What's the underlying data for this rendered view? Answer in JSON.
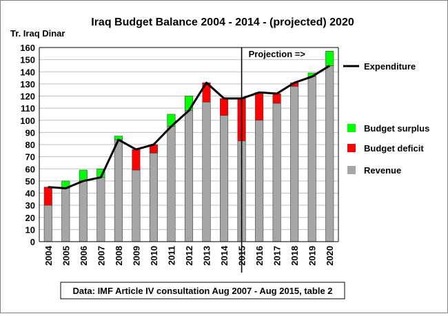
{
  "chart_data": {
    "type": "bar",
    "title": "Iraq Budget Balance 2004 - 2014 - (projected) 2020",
    "ylabel": "Tr. Iraq Dinar",
    "xlabel": "",
    "ylim": [
      0,
      160
    ],
    "yticks": [
      0,
      10,
      20,
      30,
      40,
      50,
      60,
      70,
      80,
      90,
      100,
      110,
      120,
      130,
      140,
      150,
      160
    ],
    "grid": true,
    "stacked": true,
    "categories": [
      "2004",
      "2005",
      "2006",
      "2007",
      "2008",
      "2009",
      "2010",
      "2011",
      "2012",
      "2013",
      "2014",
      "2015",
      "2016",
      "2017",
      "2018",
      "2019",
      "2020"
    ],
    "series": [
      {
        "name": "Revenue",
        "kind": "bar",
        "color": "#a6a6a6",
        "values": [
          30,
          44,
          50,
          53,
          84,
          59,
          73,
          95,
          108,
          115,
          104,
          83,
          100,
          114,
          128,
          136,
          145
        ]
      },
      {
        "name": "Budget deficit",
        "kind": "bar",
        "color": "#ff0000",
        "values": [
          15,
          0,
          0,
          0,
          0,
          17,
          7,
          0,
          0,
          16,
          14,
          35,
          23,
          8,
          3,
          0,
          0
        ]
      },
      {
        "name": "Budget surplus",
        "kind": "bar",
        "color": "#00ff00",
        "values": [
          0,
          6,
          9,
          7,
          3,
          0,
          0,
          10,
          12,
          0,
          0,
          0,
          0,
          0,
          0,
          3,
          12
        ]
      },
      {
        "name": "Expenditure",
        "kind": "line",
        "color": "#000000",
        "values": [
          45,
          44,
          50,
          53,
          84,
          76,
          80,
          95,
          108,
          131,
          118,
          118,
          123,
          122,
          131,
          136,
          145
        ]
      }
    ],
    "legend": {
      "placement": "right",
      "items": [
        {
          "label": "Expenditure",
          "color": "#000000",
          "symbol": "line"
        },
        {
          "label": "Budget surplus",
          "color": "#00ff00",
          "symbol": "square"
        },
        {
          "label": "Budget deficit",
          "color": "#ff0000",
          "symbol": "square"
        },
        {
          "label": "Revenue",
          "color": "#a6a6a6",
          "symbol": "square"
        }
      ]
    },
    "annotations": {
      "projection_label": "Projection =>",
      "projection_start_category": "2015",
      "source": "Data: IMF Article IV consultation Aug 2007 - Aug 2015, table 2"
    }
  }
}
